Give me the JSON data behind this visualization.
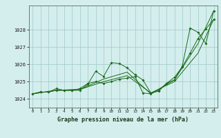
{
  "xlabel": "Graphe pression niveau de la mer (hPa)",
  "xlim": [
    -0.5,
    23.5
  ],
  "ylim": [
    1023.5,
    1029.4
  ],
  "yticks": [
    1024,
    1025,
    1026,
    1027,
    1028
  ],
  "xticks": [
    0,
    1,
    2,
    3,
    4,
    5,
    6,
    7,
    8,
    9,
    10,
    11,
    12,
    13,
    14,
    15,
    16,
    17,
    18,
    19,
    20,
    21,
    22,
    23
  ],
  "bg_color": "#d4eeed",
  "grid_color": "#9ec8c8",
  "line_color": "#1a6b1a",
  "line1": {
    "x": [
      0,
      1,
      2,
      3,
      4,
      5,
      6,
      7,
      8,
      9,
      10,
      11,
      12,
      13,
      14,
      15,
      16,
      17,
      18,
      19,
      20,
      21,
      22,
      23
    ],
    "y": [
      1024.3,
      1024.4,
      1024.4,
      1024.6,
      1024.5,
      1024.5,
      1024.5,
      1024.85,
      1025.6,
      1025.3,
      1026.1,
      1026.05,
      1025.8,
      1025.4,
      1025.1,
      1024.35,
      1024.45,
      1024.9,
      1025.1,
      1025.9,
      1028.1,
      1027.85,
      1027.2,
      1029.1
    ]
  },
  "line2": {
    "x": [
      0,
      1,
      2,
      3,
      4,
      5,
      6,
      7,
      8,
      9,
      10,
      11,
      12,
      13,
      14,
      15,
      16,
      17,
      18,
      19,
      20,
      21,
      22,
      23
    ],
    "y": [
      1024.3,
      1024.4,
      1024.4,
      1024.5,
      1024.5,
      1024.5,
      1024.6,
      1024.9,
      1025.0,
      1024.9,
      1025.0,
      1025.15,
      1025.2,
      1025.3,
      1024.35,
      1024.3,
      1024.5,
      1024.9,
      1025.25,
      1025.85,
      1026.65,
      1027.5,
      1028.05,
      1028.6
    ]
  },
  "line3": {
    "x": [
      0,
      3,
      6,
      9,
      12,
      15,
      18,
      21,
      23
    ],
    "y": [
      1024.3,
      1024.5,
      1024.55,
      1025.0,
      1025.35,
      1024.35,
      1025.0,
      1026.65,
      1028.6
    ]
  },
  "line4": {
    "x": [
      0,
      3,
      6,
      9,
      12,
      15,
      18,
      21,
      23
    ],
    "y": [
      1024.3,
      1024.5,
      1024.55,
      1025.15,
      1025.55,
      1024.3,
      1025.1,
      1027.2,
      1029.1
    ]
  }
}
